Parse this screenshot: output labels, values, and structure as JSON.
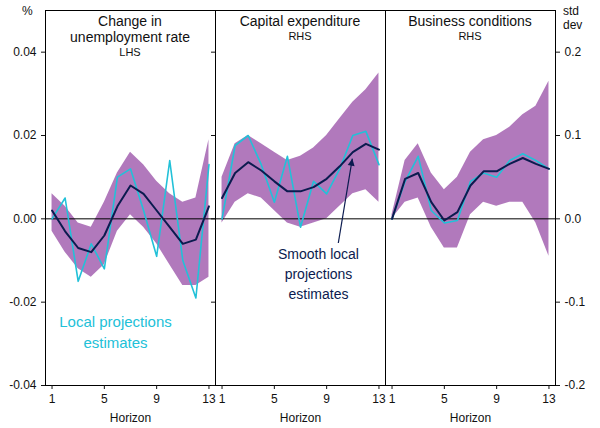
{
  "chart_data": [
    {
      "type": "line",
      "title": "Change in unemployment rate",
      "subtitle": "LHS",
      "y_label": "%",
      "x_label": "Horizon",
      "x": [
        1,
        2,
        3,
        4,
        5,
        6,
        7,
        8,
        9,
        10,
        11,
        12,
        13
      ],
      "xlim": [
        0.5,
        13.5
      ],
      "xticks": [
        1,
        5,
        9,
        13
      ],
      "ylim": [
        -0.04,
        0.05
      ],
      "yticks": [
        -0.04,
        -0.02,
        {
          "value": 0,
          "label": "0.00"
        },
        0.02,
        0.04
      ],
      "series": [
        {
          "type": "area",
          "color": "#a362b0",
          "lower": [
            -0.003,
            -0.008,
            -0.012,
            -0.014,
            -0.011,
            -0.003,
            0.001,
            -0.002,
            -0.006,
            -0.011,
            -0.016,
            -0.016,
            -0.014
          ],
          "upper": [
            0.006,
            0.003,
            -0.001,
            -0.002,
            0.004,
            0.011,
            0.016,
            0.013,
            0.009,
            0.006,
            0.004,
            0.005,
            0.019
          ]
        },
        {
          "name": "Local projections estimates",
          "color": "#22c1d8",
          "values": [
            0.0,
            0.005,
            -0.015,
            -0.006,
            -0.012,
            0.01,
            0.012,
            0.002,
            -0.009,
            0.014,
            -0.01,
            -0.019,
            0.013
          ]
        },
        {
          "color": "#0b1b4f",
          "values": [
            0.002,
            -0.003,
            -0.007,
            -0.008,
            -0.004,
            0.003,
            0.008,
            0.006,
            0.002,
            -0.002,
            -0.006,
            -0.005,
            0.003
          ]
        }
      ]
    },
    {
      "type": "line",
      "title": "Capital expenditure",
      "subtitle": "RHS",
      "x_label": "Horizon",
      "tick_labels": "x",
      "x": [
        1,
        2,
        3,
        4,
        5,
        6,
        7,
        8,
        9,
        10,
        11,
        12,
        13
      ],
      "xlim": [
        0.5,
        13.5
      ],
      "xticks": [
        1,
        5,
        9,
        13
      ],
      "y2lim": [
        -0.2,
        0.25
      ],
      "y2ticks": [
        -0.2,
        -0.1,
        0,
        0.1,
        0.2
      ],
      "series": [
        {
          "type": "area",
          "axis": "y2",
          "color": "#a362b0",
          "lower": [
            -0.005,
            0.02,
            0.03,
            0.025,
            0.01,
            -0.005,
            -0.01,
            -0.005,
            0.0,
            0.015,
            0.03,
            0.035,
            0.02
          ],
          "upper": [
            0.05,
            0.09,
            0.1,
            0.09,
            0.08,
            0.07,
            0.075,
            0.085,
            0.1,
            0.12,
            0.14,
            0.155,
            0.175
          ]
        },
        {
          "axis": "y2",
          "color": "#22c1d8",
          "values": [
            0.0,
            0.088,
            0.1,
            0.065,
            0.02,
            0.075,
            -0.01,
            0.045,
            0.03,
            0.06,
            0.1,
            0.105,
            0.065
          ]
        },
        {
          "name": "Smooth local projections estimates",
          "axis": "y2",
          "color": "#0b1b4f",
          "values": [
            0.025,
            0.055,
            0.068,
            0.058,
            0.045,
            0.033,
            0.033,
            0.038,
            0.048,
            0.063,
            0.08,
            0.09,
            0.083
          ]
        }
      ]
    },
    {
      "type": "line",
      "title": "Business conditions",
      "subtitle": "RHS",
      "y2_label": "std dev",
      "x_label": "Horizon",
      "x": [
        1,
        2,
        3,
        4,
        5,
        6,
        7,
        8,
        9,
        10,
        11,
        12,
        13
      ],
      "xlim": [
        0.5,
        13.5
      ],
      "xticks": [
        1,
        5,
        9,
        13
      ],
      "y2lim": [
        -0.2,
        0.25
      ],
      "y2ticks": [
        -0.2,
        -0.1,
        {
          "value": 0,
          "label": "0.0"
        },
        0.1,
        0.2
      ],
      "series": [
        {
          "type": "area",
          "axis": "y2",
          "color": "#a362b0",
          "lower": [
            0.0,
            0.02,
            0.025,
            -0.01,
            -0.035,
            -0.035,
            0.005,
            0.02,
            0.015,
            0.02,
            0.02,
            -0.005,
            -0.045
          ],
          "upper": [
            0.005,
            0.07,
            0.09,
            0.055,
            0.035,
            0.05,
            0.08,
            0.095,
            0.1,
            0.11,
            0.125,
            0.135,
            0.165
          ]
        },
        {
          "axis": "y2",
          "color": "#22c1d8",
          "values": [
            0.0,
            0.045,
            0.075,
            0.01,
            -0.005,
            -0.002,
            0.045,
            0.055,
            0.05,
            0.07,
            0.078,
            0.07,
            0.06
          ]
        },
        {
          "axis": "y2",
          "color": "#0b1b4f",
          "values": [
            0.0,
            0.048,
            0.055,
            0.02,
            -0.002,
            0.008,
            0.04,
            0.057,
            0.057,
            0.066,
            0.073,
            0.066,
            0.06
          ]
        }
      ]
    }
  ]
}
